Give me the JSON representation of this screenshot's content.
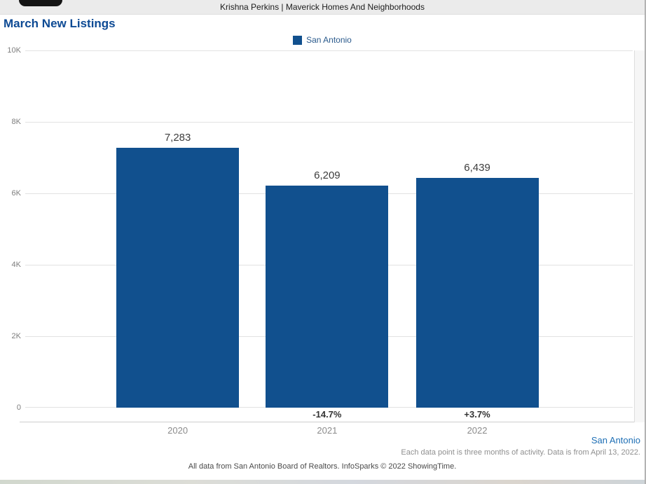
{
  "header": {
    "text": "Krishna Perkins | Maverick Homes And Neighborhoods"
  },
  "title": "March New Listings",
  "legend": {
    "label": "San Antonio"
  },
  "colors": {
    "bar": "#11508e",
    "title": "#0d4a94",
    "legend_text": "#2a5a8c",
    "link": "#1e6fb5"
  },
  "chart_data": {
    "type": "bar",
    "title": "March New Listings",
    "categories": [
      "2020",
      "2021",
      "2022"
    ],
    "values": [
      7283,
      6209,
      6439
    ],
    "value_labels": [
      "7,283",
      "6,209",
      "6,439"
    ],
    "change_labels": [
      "",
      "-14.7%",
      "+3.7%"
    ],
    "series_name": "San Antonio",
    "ylim": [
      0,
      10000
    ],
    "yticks": [
      "0",
      "2K",
      "4K",
      "6K",
      "8K",
      "10K"
    ],
    "grid": true,
    "legend_position": "top-center"
  },
  "footer": {
    "series_label": "San Antonio",
    "note": "Each data point is three months of activity. Data is from April 13, 2022.",
    "attribution": "All data from San Antonio Board of Realtors. InfoSparks © 2022 ShowingTime."
  }
}
